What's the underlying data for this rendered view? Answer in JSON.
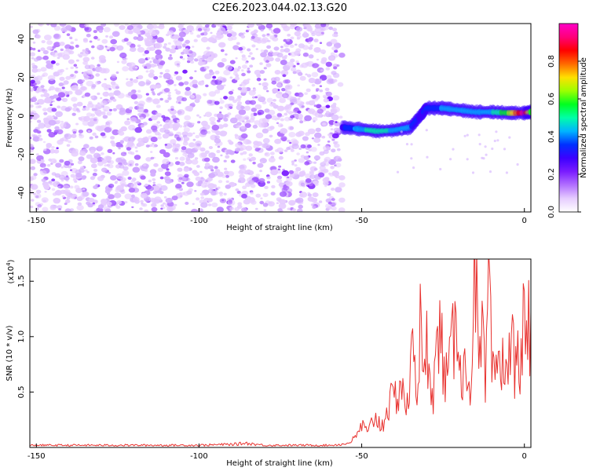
{
  "title": "C2E6.2023.044.02.13.G20",
  "colors": {
    "line": "#e8312e",
    "colormap": [
      "#ffffff",
      "#e6ccff",
      "#b270ff",
      "#7a1cff",
      "#3c00ff",
      "#0030ff",
      "#00b4ff",
      "#00ffa8",
      "#00ff20",
      "#9cff00",
      "#ffe000",
      "#ff6a00",
      "#ff0000",
      "#ff007a",
      "#ff00c8"
    ]
  },
  "chart_data": [
    {
      "type": "heatmap",
      "xlabel": "Height of straight line (km)",
      "ylabel": "Frequency (Hz)",
      "xlim": [
        -152,
        2
      ],
      "ylim": [
        -50,
        48
      ],
      "x_ticks": [
        -150,
        -100,
        -50,
        0
      ],
      "x_tick_labels": [
        "-150",
        "-100",
        "-50",
        "0"
      ],
      "y_ticks": [
        -40,
        -20,
        0,
        20,
        40
      ],
      "y_tick_labels": [
        "-40",
        "-20",
        "0",
        "20",
        "40"
      ],
      "noise_region_x": [
        -152,
        -56
      ],
      "signal_track": {
        "x": [
          -56,
          -50,
          -45,
          -40,
          -35,
          -32,
          -30,
          -25,
          -20,
          -15,
          -10,
          -5,
          0,
          2
        ],
        "y": [
          -6,
          -7,
          -8,
          -7.5,
          -6,
          0,
          4,
          4,
          3,
          2,
          2,
          1.5,
          1.5,
          2
        ],
        "amplitude": [
          0.3,
          0.45,
          0.5,
          0.45,
          0.4,
          0.3,
          0.35,
          0.4,
          0.4,
          0.45,
          0.45,
          0.6,
          0.95,
          0.6
        ]
      },
      "colorbar": {
        "label": "Normalized spectral amplitude",
        "ticks": [
          0.0,
          0.2,
          0.4,
          0.6,
          0.8
        ],
        "tick_labels": [
          "0.0",
          "0.2",
          "0.4",
          "0.6",
          "0.8"
        ]
      }
    },
    {
      "type": "line",
      "xlabel": "Height of straight line (km)",
      "ylabel": "SNR (10 * v/v)",
      "y_multiplier_label": "(x10",
      "y_multiplier_exp": "4",
      "xlim": [
        -152,
        2
      ],
      "ylim": [
        0,
        1.7
      ],
      "x_ticks": [
        -150,
        -100,
        -50,
        0
      ],
      "x_tick_labels": [
        "-150",
        "-100",
        "-50",
        "0"
      ],
      "y_ticks": [
        0.5,
        1.0,
        1.5
      ],
      "y_tick_labels": [
        "0.5",
        "1.0",
        "1.5"
      ],
      "series": [
        {
          "x": [
            -152,
            -140,
            -120,
            -100,
            -88,
            -86,
            -80,
            -70,
            -60,
            -55,
            -52,
            -50,
            -48,
            -46,
            -44,
            -42,
            -40,
            -38,
            -36,
            -34,
            -33,
            -32,
            -31,
            -30,
            -28,
            -26,
            -24,
            -22,
            -20,
            -19,
            -18,
            -17,
            -16,
            -15,
            -14,
            -13,
            -12,
            -11,
            -10,
            -9,
            -8,
            -7,
            -6,
            -5,
            -4,
            -3,
            -2,
            -1,
            0,
            1,
            2
          ],
          "y": [
            0.02,
            0.02,
            0.02,
            0.02,
            0.03,
            0.04,
            0.02,
            0.02,
            0.02,
            0.03,
            0.08,
            0.2,
            0.12,
            0.3,
            0.18,
            0.38,
            0.42,
            0.6,
            0.35,
            0.95,
            0.55,
            1.08,
            0.5,
            0.92,
            0.55,
            1.05,
            0.6,
            0.9,
            1.2,
            0.5,
            0.85,
            0.55,
            0.9,
            1.68,
            0.6,
            1.0,
            0.5,
            1.45,
            0.7,
            0.5,
            0.9,
            0.6,
            0.95,
            0.7,
            0.9,
            0.8,
            0.75,
            0.9,
            1.1,
            0.95,
            1.22
          ]
        }
      ]
    }
  ]
}
